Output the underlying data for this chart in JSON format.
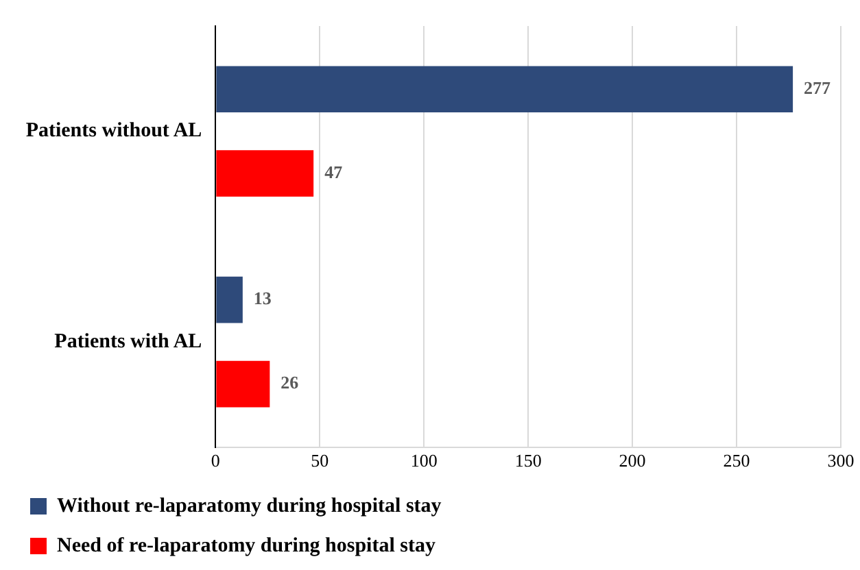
{
  "chart_data": {
    "type": "bar",
    "orientation": "horizontal",
    "categories": [
      "Patients without AL",
      "Patients with AL"
    ],
    "series": [
      {
        "name": "Without re-laparatomy during hospital stay",
        "color": "#2e4a7a",
        "values": [
          277,
          13
        ]
      },
      {
        "name": "Need of re-laparatomy during hospital stay",
        "color": "#ff0000",
        "values": [
          47,
          26
        ]
      }
    ],
    "xlim": [
      0,
      300
    ],
    "xticks": [
      0,
      50,
      100,
      150,
      200,
      250,
      300
    ],
    "grid": "x",
    "legend": "bottom",
    "data_labels": true
  }
}
